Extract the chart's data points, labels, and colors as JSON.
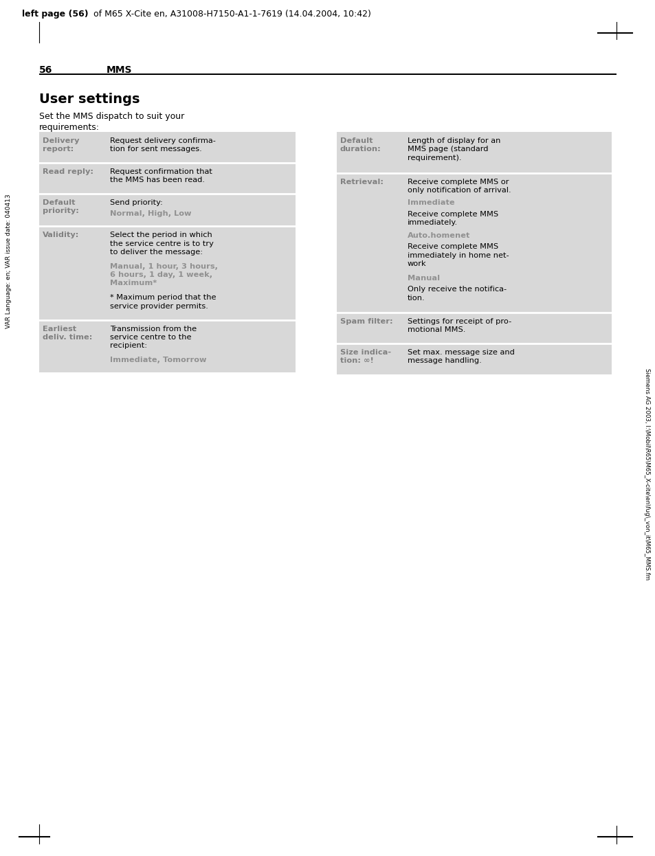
{
  "header_bold": "left page (56)",
  "header_rest": " of M65 X-Cite en, A31008-H7150-A1-1-7619 (14.04.2004, 10:42)",
  "page_number": "56",
  "chapter": "MMS",
  "section_title": "User settings",
  "section_intro": "Set the MMS dispatch to suit your\nrequirements:",
  "sidebar_left": "VAR Language: en; VAR issue date: 040413",
  "sidebar_right": "Siemens AG 2003, I:\\Mobil\\R65\\M65_X-cite\\en\\fug\\_von_it\\M65_MMS.fm",
  "bg_color": "#d8d8d8",
  "white": "#ffffff",
  "label_color": "#808080",
  "colored_text_color": "#909090",
  "left_table": [
    {
      "label": "Delivery\nreport:",
      "content": [
        {
          "text": "Request delivery confirma-\ntion for sent messages.",
          "style": "normal"
        }
      ]
    },
    {
      "label": "Read reply:",
      "content": [
        {
          "text": "Request confirmation that\nthe MMS has been read.",
          "style": "normal"
        }
      ]
    },
    {
      "label": "Default\npriority:",
      "content": [
        {
          "text": "Send priority:",
          "style": "normal"
        },
        {
          "text": "Normal, High, Low",
          "style": "colored"
        }
      ]
    },
    {
      "label": "Validity:",
      "content": [
        {
          "text": "Select the period in which\nthe service centre is to try\nto deliver the message:",
          "style": "normal"
        },
        {
          "text": "Manual, 1 hour, 3 hours,\n6 hours, 1 day, 1 week,\nMaximum*",
          "style": "colored"
        },
        {
          "text": "* Maximum period that the\nservice provider permits.",
          "style": "normal"
        }
      ]
    },
    {
      "label": "Earliest\ndeliv. time:",
      "content": [
        {
          "text": "Transmission from the\nservice centre to the\nrecipient:",
          "style": "normal"
        },
        {
          "text": "Immediate, Tomorrow",
          "style": "colored"
        }
      ]
    }
  ],
  "right_table": [
    {
      "label": "Default\nduration:",
      "content": [
        {
          "text": "Length of display for an\nMMS page (standard\nrequirement).",
          "style": "normal"
        }
      ]
    },
    {
      "label": "Retrieval:",
      "content": [
        {
          "text": "Receive complete MMS or\nonly notification of arrival.",
          "style": "normal"
        },
        {
          "text": "Immediate",
          "style": "colored"
        },
        {
          "text": "Receive complete MMS\nimmediately.",
          "style": "normal"
        },
        {
          "text": "Auto.homenet",
          "style": "colored"
        },
        {
          "text": "Receive complete MMS\nimmediately in home net-\nwork",
          "style": "normal"
        },
        {
          "text": "Manual",
          "style": "colored"
        },
        {
          "text": "Only receive the notifica-\ntion.",
          "style": "normal"
        }
      ]
    },
    {
      "label": "Spam filter:",
      "content": [
        {
          "text": "Settings for receipt of pro-\nmotional MMS.",
          "style": "normal"
        }
      ]
    },
    {
      "label": "Size indica-\ntion: ∞!",
      "content": [
        {
          "text": "Set max. message size and\nmessage handling.",
          "style": "normal"
        }
      ]
    }
  ]
}
